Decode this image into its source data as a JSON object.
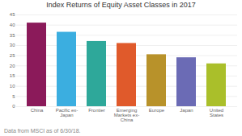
{
  "chart_data": {
    "type": "bar",
    "title": "Index Returns of Equity Asset Classes in 2017",
    "categories": [
      "China",
      "Pacific ex-Japan",
      "Frontier",
      "Emerging\nMarkets ex-\nChina",
      "Europe",
      "Japan",
      "United States"
    ],
    "values": [
      41,
      36.5,
      32,
      31,
      25.5,
      24,
      21
    ],
    "colors": [
      "#8B1A5A",
      "#3BAEE0",
      "#2EA89A",
      "#E05A2B",
      "#B8922A",
      "#6B6BB5",
      "#AABF2A"
    ],
    "ylim": [
      0,
      45
    ],
    "yticks": [
      0,
      5,
      10,
      15,
      20,
      25,
      30,
      35,
      40,
      45
    ],
    "grid": true,
    "footnote": "Data from MSCI as of 6/30/18."
  }
}
